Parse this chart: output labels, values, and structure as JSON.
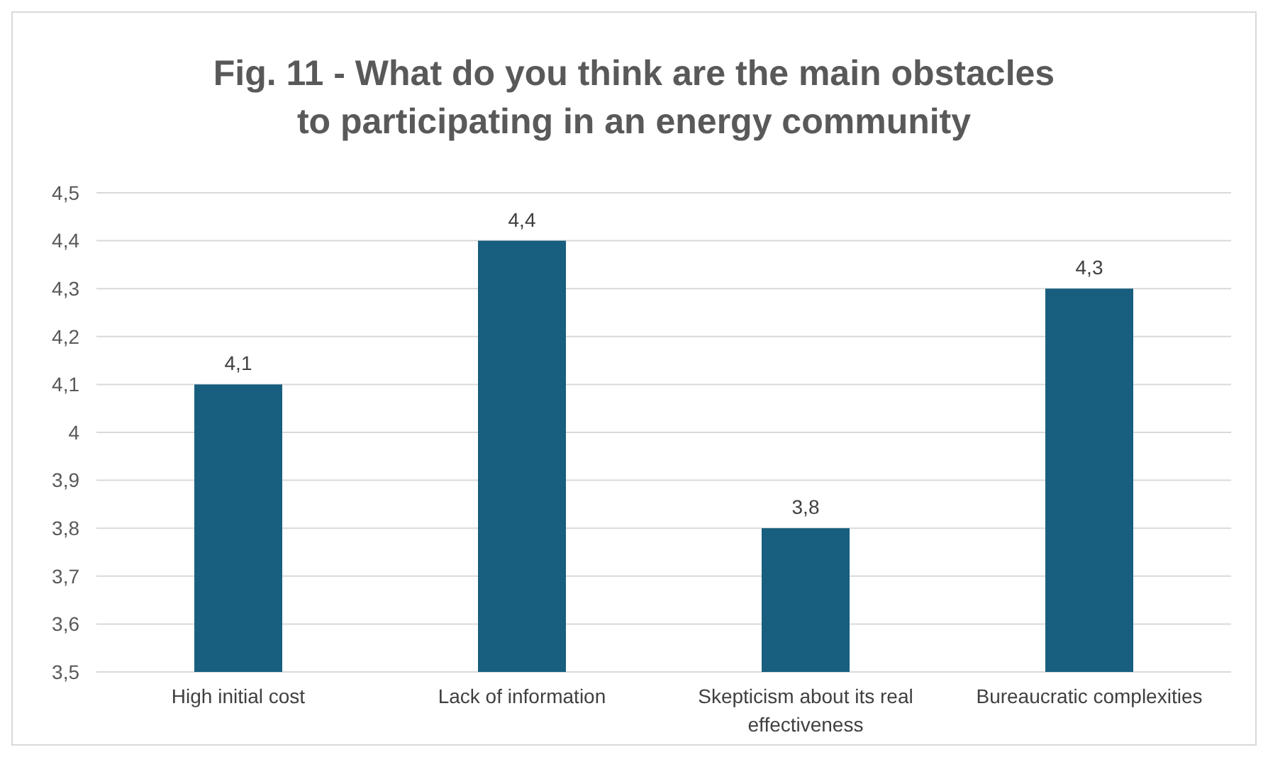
{
  "chart_data": {
    "type": "bar",
    "title": "Fig. 11 - What do you think are the main obstacles to participating in an energy community",
    "categories": [
      "High initial cost",
      "Lack of information",
      "Skepticism about its real effectiveness",
      "Bureaucratic complexities"
    ],
    "values": [
      4.1,
      4.4,
      3.8,
      4.3
    ],
    "color": "#175e7f",
    "value_labels": [
      "4,1",
      "4,4",
      "3,8",
      "4,3"
    ],
    "ylim": [
      3.5,
      4.5
    ],
    "yticks": [
      {
        "value": 3.5,
        "label": "3,5"
      },
      {
        "value": 3.6,
        "label": "3,6"
      },
      {
        "value": 3.7,
        "label": "3,7"
      },
      {
        "value": 3.8,
        "label": "3,8"
      },
      {
        "value": 3.9,
        "label": "3,9"
      },
      {
        "value": 4,
        "label": "4"
      },
      {
        "value": 4.1,
        "label": "4,1"
      },
      {
        "value": 4.2,
        "label": "4,2"
      },
      {
        "value": 4.3,
        "label": "4,3"
      },
      {
        "value": 4.4,
        "label": "4,4"
      },
      {
        "value": 4.5,
        "label": "4,5"
      }
    ],
    "grid": "y"
  }
}
